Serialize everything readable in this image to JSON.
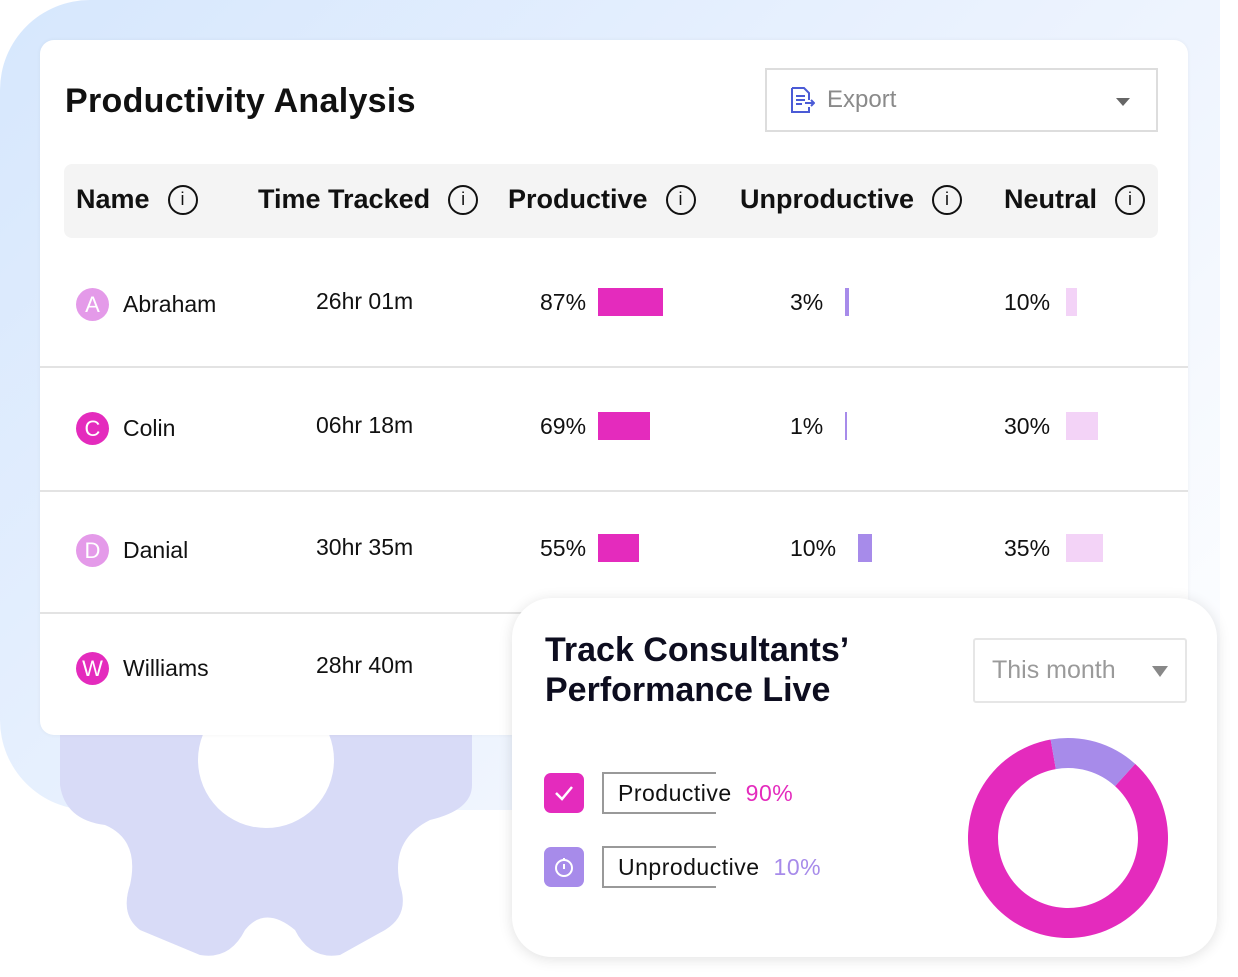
{
  "colors": {
    "productive": "#e42bbd",
    "unproductive": "#a78bea",
    "neutral": "#f3d3f7",
    "gear": "#d8dbf7"
  },
  "card": {
    "title": "Productivity Analysis",
    "export_label": "Export",
    "export_icon": "document-export-icon"
  },
  "columns": [
    {
      "label": "Name"
    },
    {
      "label": "Time Tracked"
    },
    {
      "label": "Productive"
    },
    {
      "label": "Unproductive"
    },
    {
      "label": "Neutral"
    }
  ],
  "rows": [
    {
      "initial": "A",
      "name": "Abraham",
      "time": "26hr 01m",
      "productive": "87%",
      "p": 87,
      "unproductive": "3%",
      "u": 3,
      "neutral": "10%",
      "n": 10,
      "avatar_color": "#e49ae9"
    },
    {
      "initial": "C",
      "name": "Colin",
      "time": "06hr 18m",
      "productive": "69%",
      "p": 69,
      "unproductive": "1%",
      "u": 1,
      "neutral": "30%",
      "n": 30,
      "avatar_color": "#e42bbd"
    },
    {
      "initial": "D",
      "name": "Danial",
      "time": "30hr 35m",
      "productive": "55%",
      "p": 55,
      "unproductive": "10%",
      "u": 10,
      "neutral": "35%",
      "n": 35,
      "avatar_color": "#e49ae9"
    },
    {
      "initial": "W",
      "name": "Williams",
      "time": "28hr 40m"
    }
  ],
  "popup": {
    "title_line1": "Track Consultants’",
    "title_line2": "Performance Live",
    "period": "This month",
    "legend": [
      {
        "label": "Productive",
        "value": "90%",
        "icon": "check-icon"
      },
      {
        "label": "Unproductive",
        "value": "10%",
        "icon": "stopwatch-icon"
      }
    ]
  },
  "chart_data": {
    "type": "pie",
    "categories": [
      "Productive",
      "Unproductive"
    ],
    "values": [
      90,
      10
    ]
  }
}
